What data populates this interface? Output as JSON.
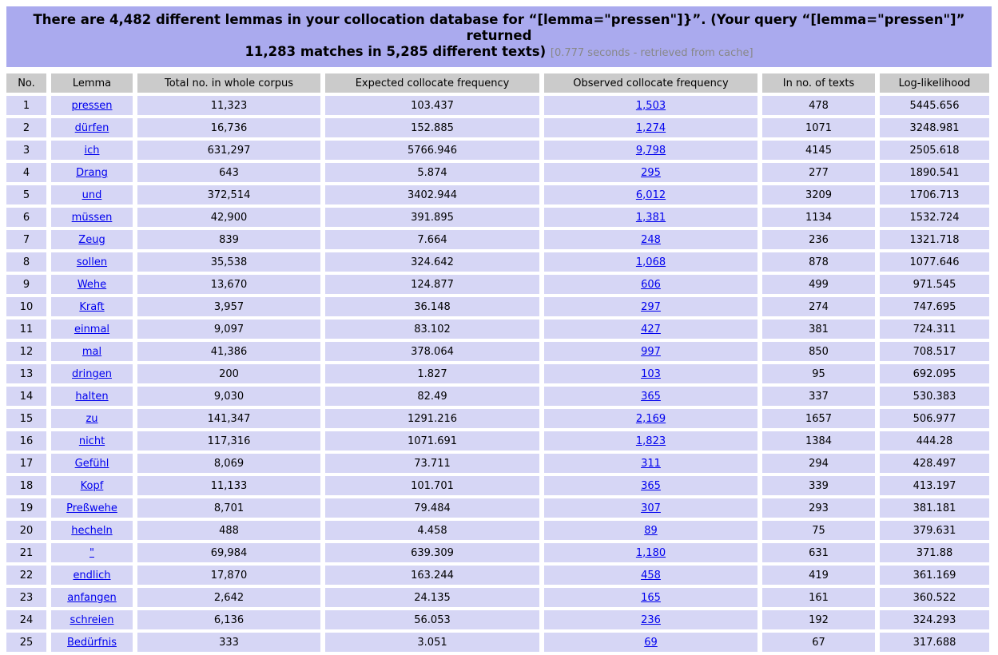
{
  "banner": {
    "line1": "There are 4,482 different lemmas in your collocation database for “[lemma=\"pressen\"]}”. (Your query “[lemma=\"pressen\"]” returned",
    "line2": "11,283 matches in 5,285 different texts)",
    "note": "[0.777 seconds - retrieved from cache]"
  },
  "colors": {
    "banner_bg": "#aaaaee",
    "header_bg": "#cbcbcb",
    "cell_bg": "#d6d6f5",
    "link": "#0000ee",
    "note_gray": "#888888"
  },
  "table": {
    "columns": [
      "No.",
      "Lemma",
      "Total no. in whole corpus",
      "Expected collocate frequency",
      "Observed collocate frequency",
      "In no. of texts",
      "Log-likelihood"
    ],
    "rows": [
      {
        "no": "1",
        "lemma": "pressen",
        "total": "11,323",
        "expected": "103.437",
        "observed": "1,503",
        "texts": "478",
        "log_likelihood": "5445.656"
      },
      {
        "no": "2",
        "lemma": "dürfen",
        "total": "16,736",
        "expected": "152.885",
        "observed": "1,274",
        "texts": "1071",
        "log_likelihood": "3248.981"
      },
      {
        "no": "3",
        "lemma": "ich",
        "total": "631,297",
        "expected": "5766.946",
        "observed": "9,798",
        "texts": "4145",
        "log_likelihood": "2505.618"
      },
      {
        "no": "4",
        "lemma": "Drang",
        "total": "643",
        "expected": "5.874",
        "observed": "295",
        "texts": "277",
        "log_likelihood": "1890.541"
      },
      {
        "no": "5",
        "lemma": "und",
        "total": "372,514",
        "expected": "3402.944",
        "observed": "6,012",
        "texts": "3209",
        "log_likelihood": "1706.713"
      },
      {
        "no": "6",
        "lemma": "müssen",
        "total": "42,900",
        "expected": "391.895",
        "observed": "1,381",
        "texts": "1134",
        "log_likelihood": "1532.724"
      },
      {
        "no": "7",
        "lemma": "Zeug",
        "total": "839",
        "expected": "7.664",
        "observed": "248",
        "texts": "236",
        "log_likelihood": "1321.718"
      },
      {
        "no": "8",
        "lemma": "sollen",
        "total": "35,538",
        "expected": "324.642",
        "observed": "1,068",
        "texts": "878",
        "log_likelihood": "1077.646"
      },
      {
        "no": "9",
        "lemma": "Wehe",
        "total": "13,670",
        "expected": "124.877",
        "observed": "606",
        "texts": "499",
        "log_likelihood": "971.545"
      },
      {
        "no": "10",
        "lemma": "Kraft",
        "total": "3,957",
        "expected": "36.148",
        "observed": "297",
        "texts": "274",
        "log_likelihood": "747.695"
      },
      {
        "no": "11",
        "lemma": "einmal",
        "total": "9,097",
        "expected": "83.102",
        "observed": "427",
        "texts": "381",
        "log_likelihood": "724.311"
      },
      {
        "no": "12",
        "lemma": "mal",
        "total": "41,386",
        "expected": "378.064",
        "observed": "997",
        "texts": "850",
        "log_likelihood": "708.517"
      },
      {
        "no": "13",
        "lemma": "dringen",
        "total": "200",
        "expected": "1.827",
        "observed": "103",
        "texts": "95",
        "log_likelihood": "692.095"
      },
      {
        "no": "14",
        "lemma": "halten",
        "total": "9,030",
        "expected": "82.49",
        "observed": "365",
        "texts": "337",
        "log_likelihood": "530.383"
      },
      {
        "no": "15",
        "lemma": "zu",
        "total": "141,347",
        "expected": "1291.216",
        "observed": "2,169",
        "texts": "1657",
        "log_likelihood": "506.977"
      },
      {
        "no": "16",
        "lemma": "nicht",
        "total": "117,316",
        "expected": "1071.691",
        "observed": "1,823",
        "texts": "1384",
        "log_likelihood": "444.28"
      },
      {
        "no": "17",
        "lemma": "Gefühl",
        "total": "8,069",
        "expected": "73.711",
        "observed": "311",
        "texts": "294",
        "log_likelihood": "428.497"
      },
      {
        "no": "18",
        "lemma": "Kopf",
        "total": "11,133",
        "expected": "101.701",
        "observed": "365",
        "texts": "339",
        "log_likelihood": "413.197"
      },
      {
        "no": "19",
        "lemma": "Preßwehe",
        "total": "8,701",
        "expected": "79.484",
        "observed": "307",
        "texts": "293",
        "log_likelihood": "381.181"
      },
      {
        "no": "20",
        "lemma": "hecheln",
        "total": "488",
        "expected": "4.458",
        "observed": "89",
        "texts": "75",
        "log_likelihood": "379.631"
      },
      {
        "no": "21",
        "lemma": "\"",
        "total": "69,984",
        "expected": "639.309",
        "observed": "1,180",
        "texts": "631",
        "log_likelihood": "371.88"
      },
      {
        "no": "22",
        "lemma": "endlich",
        "total": "17,870",
        "expected": "163.244",
        "observed": "458",
        "texts": "419",
        "log_likelihood": "361.169"
      },
      {
        "no": "23",
        "lemma": "anfangen",
        "total": "2,642",
        "expected": "24.135",
        "observed": "165",
        "texts": "161",
        "log_likelihood": "360.522"
      },
      {
        "no": "24",
        "lemma": "schreien",
        "total": "6,136",
        "expected": "56.053",
        "observed": "236",
        "texts": "192",
        "log_likelihood": "324.293"
      },
      {
        "no": "25",
        "lemma": "Bedürfnis",
        "total": "333",
        "expected": "3.051",
        "observed": "69",
        "texts": "67",
        "log_likelihood": "317.688"
      }
    ]
  }
}
